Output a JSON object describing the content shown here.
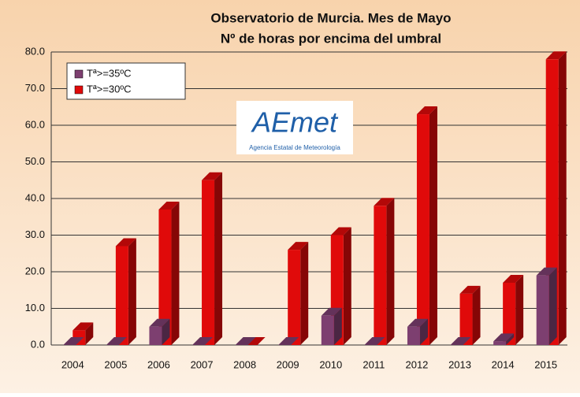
{
  "chart_data": {
    "type": "bar3d",
    "title": "Observatorio de Murcia. Mes de Mayo",
    "subtitle": "Nº de horas por encima del umbral",
    "annotations": [
      "AEmet",
      "Agencia Estatal de Meteorología"
    ],
    "categories": [
      "2004",
      "2005",
      "2006",
      "2007",
      "2008",
      "2009",
      "2010",
      "2011",
      "2012",
      "2013",
      "2014",
      "2015"
    ],
    "series": [
      {
        "name": "Tª>=35ºC",
        "color": "#7d3f70",
        "values": [
          0,
          0,
          5,
          0,
          0,
          0,
          8,
          0,
          5,
          0,
          1,
          19
        ]
      },
      {
        "name": "Tª>=30ºC",
        "color": "#e00a0a",
        "values": [
          4,
          27,
          37,
          45,
          0,
          26,
          30,
          38,
          63,
          14,
          17,
          78
        ]
      }
    ],
    "ylim": [
      0,
      80
    ],
    "yticks": [
      {
        "value": 0,
        "label": "0.0"
      },
      {
        "value": 10,
        "label": "10.0"
      },
      {
        "value": 20,
        "label": "20.0"
      },
      {
        "value": 30,
        "label": "30.0"
      },
      {
        "value": 40,
        "label": "40.0"
      },
      {
        "value": 50,
        "label": "50.0"
      },
      {
        "value": 60,
        "label": "60.0"
      },
      {
        "value": 70,
        "label": "70.0"
      },
      {
        "value": 80,
        "label": "80.0"
      }
    ],
    "grid": true,
    "legend": "upper left"
  }
}
